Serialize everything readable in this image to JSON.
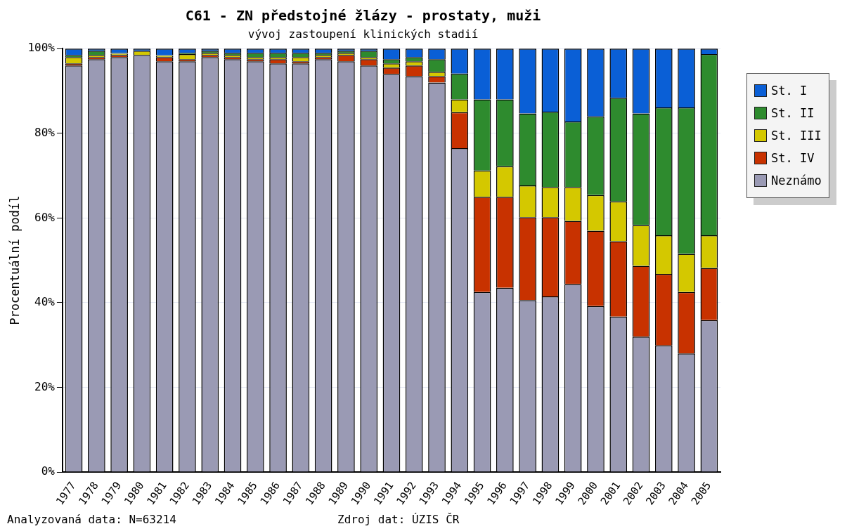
{
  "chart_data": {
    "type": "bar",
    "title": "C61 - ZN předstojné žlázy - prostaty, muži",
    "subtitle": "vývoj zastoupení klinických stadií",
    "ylabel": "Procentuální podíl",
    "categories": [
      "1977",
      "1978",
      "1979",
      "1980",
      "1981",
      "1982",
      "1983",
      "1984",
      "1985",
      "1986",
      "1987",
      "1988",
      "1989",
      "1990",
      "1991",
      "1992",
      "1993",
      "1994",
      "1995",
      "1996",
      "1997",
      "1998",
      "1999",
      "2000",
      "2001",
      "2002",
      "2003",
      "2004",
      "2005"
    ],
    "stacked": true,
    "ylim": [
      0,
      100
    ],
    "yticks": [
      {
        "value": 0,
        "label": "0%"
      },
      {
        "value": 20,
        "label": "20%"
      },
      {
        "value": 40,
        "label": "40%"
      },
      {
        "value": 60,
        "label": "60%"
      },
      {
        "value": 80,
        "label": "80%"
      },
      {
        "value": 100,
        "label": "100%"
      }
    ],
    "grid": "y",
    "legend": "right",
    "series": [
      {
        "name": "Neznámo",
        "color": "#9a9ab4",
        "values": [
          96,
          97.5,
          98,
          98.5,
          97,
          97,
          98,
          97.5,
          97,
          96.5,
          96.5,
          97.5,
          97,
          96,
          94,
          93.5,
          92,
          76.5,
          42.5,
          43.5,
          40.6,
          41.5,
          44.4,
          39.2,
          36.7,
          32,
          29.9,
          28,
          35.9
        ]
      },
      {
        "name": "St. IV",
        "color": "#c83200",
        "values": [
          0.5,
          0.5,
          0.5,
          0,
          1,
          0.5,
          0.5,
          0.5,
          0.5,
          1,
          0.5,
          0.5,
          1.5,
          1.5,
          1.5,
          2.5,
          1.5,
          8.5,
          22.5,
          21.5,
          19.6,
          18.7,
          14.9,
          17.8,
          17.8,
          16.7,
          16.9,
          14.5,
          12.3
        ]
      },
      {
        "name": "St. III",
        "color": "#d4c800",
        "values": [
          1.5,
          0.5,
          0.3,
          1,
          0.3,
          1.2,
          0.5,
          0.5,
          0.5,
          0.5,
          1,
          0.5,
          0.5,
          0.5,
          1,
          1,
          1,
          3,
          6.2,
          7.2,
          7.5,
          7.1,
          8,
          8.4,
          9.4,
          9.6,
          9.1,
          9,
          7.7
        ]
      },
      {
        "name": "St. II",
        "color": "#2e8b2e",
        "values": [
          0.5,
          1,
          0.2,
          0,
          0.2,
          0.3,
          0.5,
          0.5,
          1,
          1,
          1,
          0.5,
          0.5,
          1.5,
          1,
          1,
          3,
          6.1,
          16.8,
          15.8,
          17,
          17.8,
          15.5,
          18.6,
          24.5,
          26.4,
          30.2,
          34.6,
          42.8
        ]
      },
      {
        "name": "St. I",
        "color": "#0a5fd6",
        "values": [
          1.5,
          0.5,
          1,
          0.5,
          1.5,
          1,
          0.5,
          1,
          1,
          1,
          1,
          1,
          0.5,
          0.5,
          2.5,
          2,
          2.5,
          5.9,
          12,
          12,
          15.3,
          14.9,
          17.2,
          16,
          11.6,
          15.3,
          13.9,
          13.9,
          1.3
        ]
      }
    ],
    "annotations": [
      "Analyzovaná data: N=63214",
      "Zdroj dat: ÚZIS ČR"
    ]
  }
}
